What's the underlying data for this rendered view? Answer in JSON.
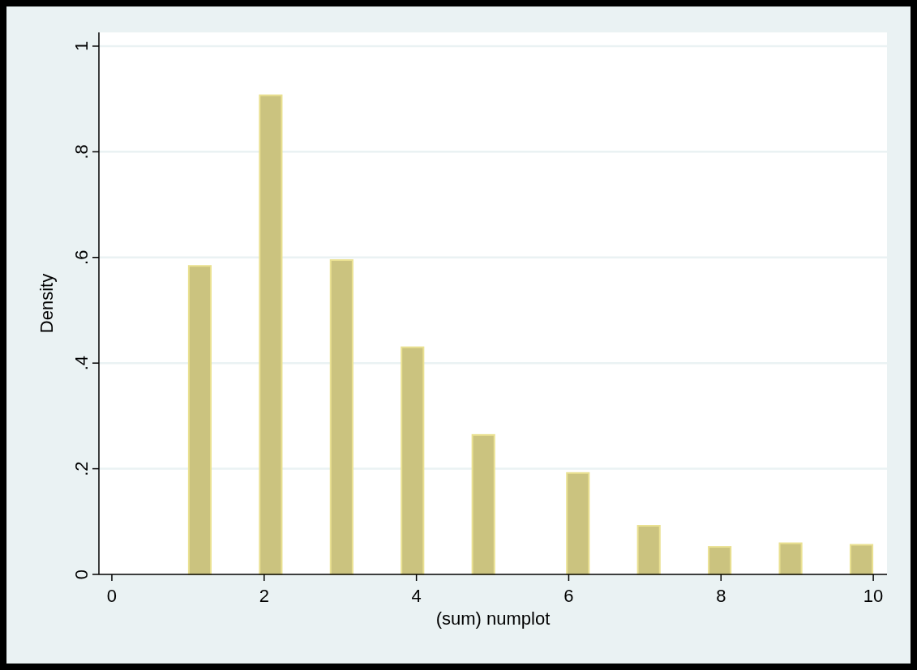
{
  "chart_data": {
    "type": "histogram",
    "xlabel": "(sum) numplot",
    "ylabel": "Density",
    "bins": [
      1,
      1.3103,
      1.6207,
      1.931,
      2.2414,
      2.5517,
      2.8621,
      3.1724,
      3.4828,
      3.7931,
      4.1034,
      4.4138,
      4.7241,
      5.0345,
      5.3448,
      5.6552,
      5.9655,
      6.2759,
      6.5862,
      6.8966,
      7.2069,
      7.5172,
      7.8276,
      8.1379,
      8.4483,
      8.7586,
      9.069,
      9.3793,
      9.6897,
      10
    ],
    "values": [
      0.584,
      0,
      0,
      0.907,
      0,
      0,
      0.595,
      0,
      0,
      0.43,
      0,
      0,
      0.264,
      0,
      0,
      0,
      0.192,
      0,
      0,
      0.092,
      0,
      0,
      0.052,
      0,
      0,
      0.059,
      0,
      0,
      0.056
    ],
    "color": "#cbc37f",
    "xlim": [
      -0.17,
      10.18
    ],
    "ylim": [
      0,
      1.026
    ],
    "xticks": [
      0,
      2,
      4,
      6,
      8,
      10
    ],
    "yticks": [
      0,
      {
        "value": 0.2,
        "label": ".2"
      },
      {
        "value": 0.4,
        "label": ".4"
      },
      {
        "value": 0.6,
        "label": ".6"
      },
      {
        "value": 0.8,
        "label": ".8"
      },
      1
    ],
    "grid": "y"
  }
}
